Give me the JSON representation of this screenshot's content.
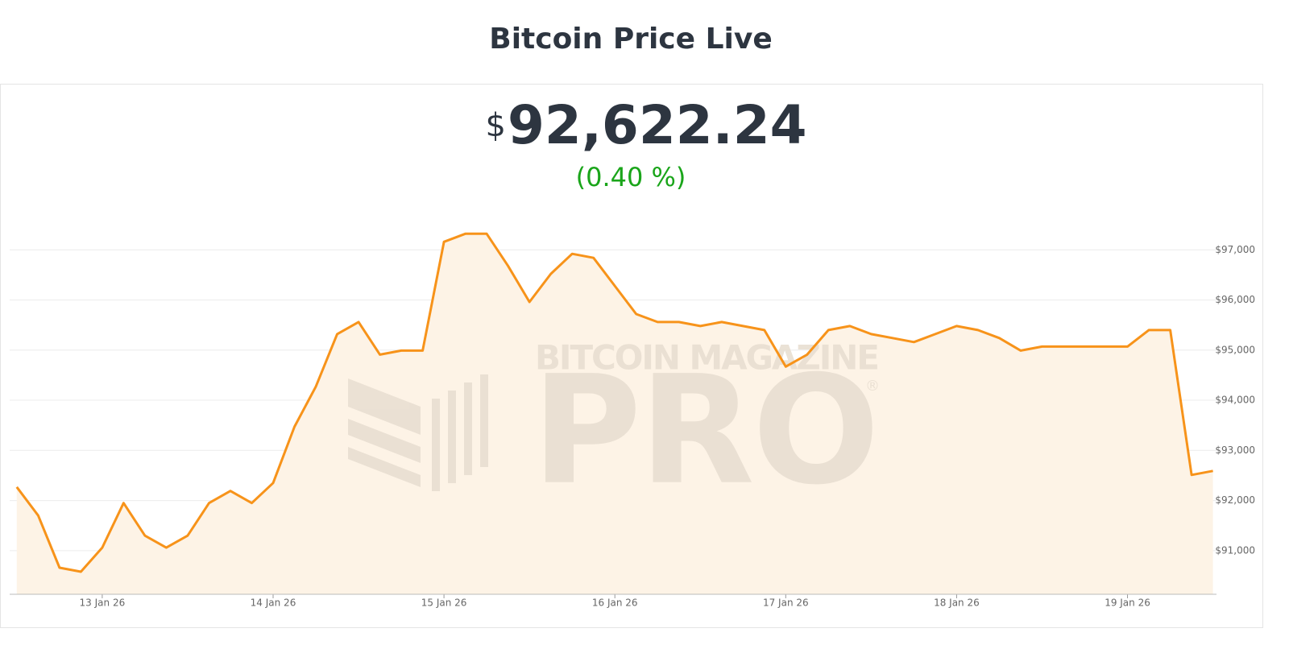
{
  "header": {
    "price_symbol": "$",
    "price": "92,622.24",
    "change": "(0.40 %)"
  },
  "watermark": {
    "brand": "BITCOIN MAGAZINE",
    "product": "PRO",
    "mark": "®"
  },
  "chart_data": {
    "type": "line",
    "title": "Bitcoin Price Live",
    "x": [
      "2026-01-12T12:00",
      "2026-01-12T15:00",
      "2026-01-12T18:00",
      "2026-01-12T21:00",
      "2026-01-13T00:00",
      "2026-01-13T03:00",
      "2026-01-13T06:00",
      "2026-01-13T09:00",
      "2026-01-13T12:00",
      "2026-01-13T15:00",
      "2026-01-13T18:00",
      "2026-01-13T21:00",
      "2026-01-14T00:00",
      "2026-01-14T03:00",
      "2026-01-14T06:00",
      "2026-01-14T09:00",
      "2026-01-14T12:00",
      "2026-01-14T15:00",
      "2026-01-14T18:00",
      "2026-01-14T21:00",
      "2026-01-15T00:00",
      "2026-01-15T03:00",
      "2026-01-15T06:00",
      "2026-01-15T09:00",
      "2026-01-15T12:00",
      "2026-01-15T15:00",
      "2026-01-15T18:00",
      "2026-01-15T21:00",
      "2026-01-16T00:00",
      "2026-01-16T03:00",
      "2026-01-16T06:00",
      "2026-01-16T09:00",
      "2026-01-16T12:00",
      "2026-01-16T15:00",
      "2026-01-16T18:00",
      "2026-01-16T21:00",
      "2026-01-17T00:00",
      "2026-01-17T03:00",
      "2026-01-17T06:00",
      "2026-01-17T09:00",
      "2026-01-17T12:00",
      "2026-01-17T15:00",
      "2026-01-17T18:00",
      "2026-01-17T21:00",
      "2026-01-18T00:00",
      "2026-01-18T03:00",
      "2026-01-18T06:00",
      "2026-01-18T09:00",
      "2026-01-18T12:00",
      "2026-01-18T15:00",
      "2026-01-18T18:00",
      "2026-01-18T21:00",
      "2026-01-19T00:00",
      "2026-01-19T03:00",
      "2026-01-19T06:00",
      "2026-01-19T09:00",
      "2026-01-19T12:00"
    ],
    "series": [
      {
        "name": "Bitcoin Price",
        "color": "#f7931a",
        "fill_color": "#fdf3e6",
        "values": [
          92270,
          91700,
          90660,
          90580,
          91060,
          91950,
          91300,
          91060,
          91300,
          91950,
          92190,
          91950,
          92350,
          93470,
          94270,
          95320,
          95560,
          94910,
          94990,
          94990,
          97160,
          97320,
          97320,
          96680,
          95960,
          96520,
          96920,
          96840,
          96280,
          95720,
          95560,
          95560,
          95480,
          95560,
          95480,
          95400,
          94670,
          94910,
          95400,
          95480,
          95320,
          95240,
          95160,
          95320,
          95480,
          95400,
          95240,
          94990,
          95070,
          95070,
          95070,
          95070,
          95070,
          95400,
          95400,
          92510,
          92590
        ]
      }
    ],
    "xlim": [
      "2026-01-12T11:00",
      "2026-01-19T12:30"
    ],
    "xticks": [
      {
        "value": "2026-01-13T00:00",
        "label": "13 Jan 26"
      },
      {
        "value": "2026-01-14T00:00",
        "label": "14 Jan 26"
      },
      {
        "value": "2026-01-15T00:00",
        "label": "15 Jan 26"
      },
      {
        "value": "2026-01-16T00:00",
        "label": "16 Jan 26"
      },
      {
        "value": "2026-01-17T00:00",
        "label": "17 Jan 26"
      },
      {
        "value": "2026-01-18T00:00",
        "label": "18 Jan 26"
      },
      {
        "value": "2026-01-19T00:00",
        "label": "19 Jan 26"
      }
    ],
    "ylim": [
      90130,
      98000
    ],
    "yticks": [
      {
        "value": 91000,
        "label": "$91,000"
      },
      {
        "value": 92000,
        "label": "$92,000"
      },
      {
        "value": 93000,
        "label": "$93,000"
      },
      {
        "value": 94000,
        "label": "$94,000"
      },
      {
        "value": 95000,
        "label": "$95,000"
      },
      {
        "value": 96000,
        "label": "$96,000"
      },
      {
        "value": 97000,
        "label": "$97,000"
      }
    ],
    "grid": true
  }
}
